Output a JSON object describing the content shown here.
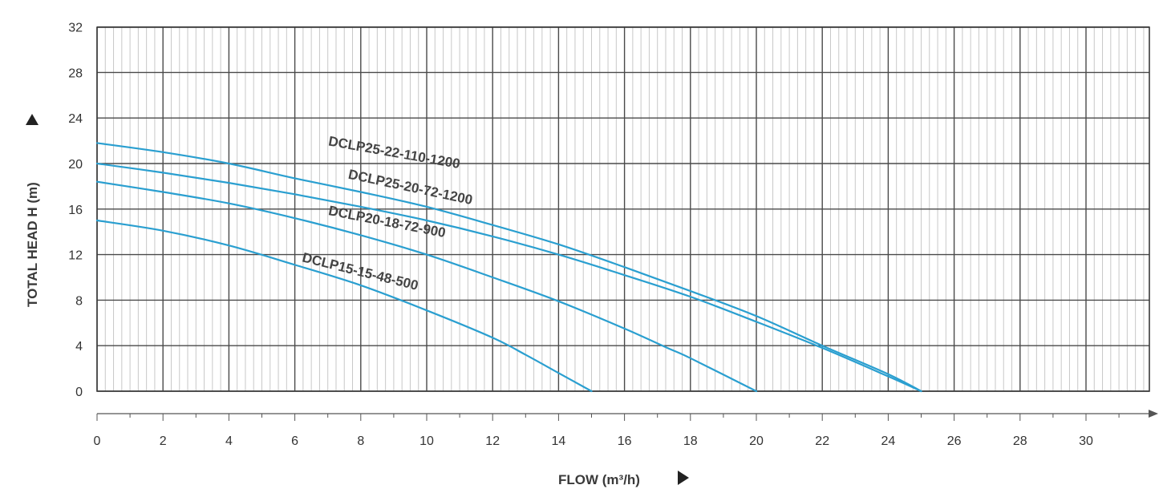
{
  "chart_data": {
    "type": "line",
    "xlabel": "FLOW (m³/h)",
    "ylabel": "TOTAL HEAD H (m)",
    "xlim": [
      0,
      32
    ],
    "ylim": [
      0,
      32
    ],
    "x_ticks": [
      0,
      2,
      4,
      6,
      8,
      10,
      12,
      14,
      16,
      18,
      20,
      22,
      24,
      26,
      28,
      30
    ],
    "y_ticks": [
      0,
      4,
      8,
      12,
      16,
      20,
      24,
      28,
      32
    ],
    "grid": true,
    "colors": {
      "curve": "#2a9fd0",
      "grid_major": "#4a4a4a",
      "grid_minor": "#c8c8c8"
    },
    "series": [
      {
        "name": "DCLP25-22-110-1200",
        "x": [
          0,
          2,
          4,
          6,
          8,
          10,
          12,
          14,
          16,
          18,
          20,
          22,
          24,
          25
        ],
        "y": [
          21.8,
          21.0,
          20.0,
          18.7,
          17.5,
          16.2,
          14.6,
          12.9,
          10.9,
          8.8,
          6.6,
          4.0,
          1.5,
          0
        ]
      },
      {
        "name": "DCLP25-20-72-1200",
        "x": [
          0,
          2,
          4,
          6,
          8,
          10,
          12,
          14,
          16,
          18,
          20,
          22,
          24,
          25
        ],
        "y": [
          20.0,
          19.2,
          18.3,
          17.3,
          16.2,
          15.0,
          13.6,
          12.0,
          10.2,
          8.3,
          6.1,
          3.8,
          1.3,
          0
        ]
      },
      {
        "name": "DCLP20-18-72-900",
        "x": [
          0,
          2,
          4,
          6,
          8,
          10,
          12,
          14,
          16,
          17.3,
          18,
          20
        ],
        "y": [
          18.4,
          17.5,
          16.5,
          15.2,
          13.7,
          12.0,
          10.0,
          7.9,
          5.5,
          3.8,
          2.9,
          0
        ]
      },
      {
        "name": "DCLP15-15-48-500",
        "x": [
          0,
          2,
          4,
          6,
          8,
          10,
          12,
          13,
          14,
          15
        ],
        "y": [
          15.0,
          14.1,
          12.8,
          11.1,
          9.3,
          7.1,
          4.7,
          3.2,
          1.6,
          0
        ]
      }
    ]
  }
}
